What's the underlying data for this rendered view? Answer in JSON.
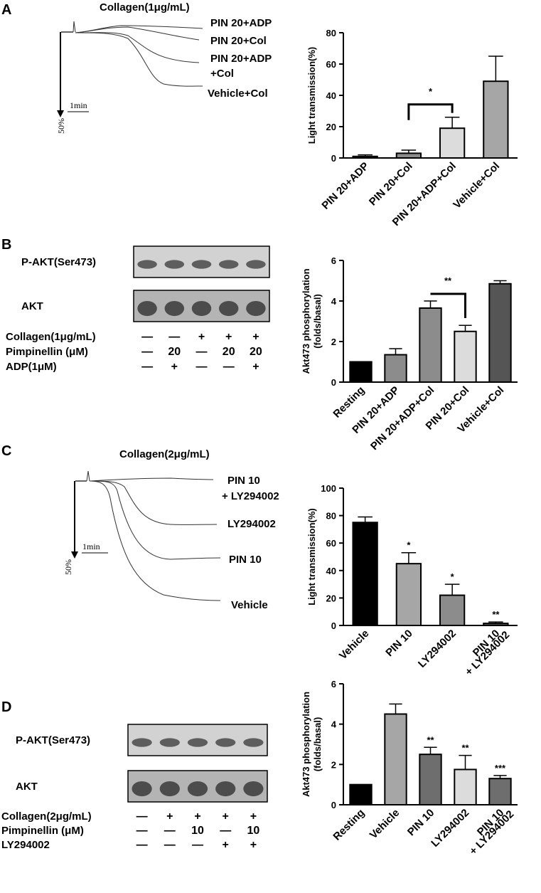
{
  "panels": {
    "A": {
      "letter": "A",
      "trace": {
        "title": "Collagen(1μg/mL)",
        "labels": [
          "PIN 20+ADP",
          "PIN 20+Col",
          "PIN 20+ADP",
          "+Col",
          "Vehicle+Col"
        ],
        "time_scale": "1min",
        "y_scale": "50%"
      },
      "chart": {
        "ylabel": "Light transmission(%)",
        "sig": "*"
      }
    },
    "B": {
      "letter": "B",
      "blot": {
        "rows": [
          "P-AKT(Ser473)",
          "AKT"
        ],
        "conditions": [
          {
            "label": "Collagen(1μg/mL)",
            "values": [
              "—",
              "—",
              "+",
              "+",
              "+"
            ]
          },
          {
            "label": "Pimpinellin (μM)",
            "values": [
              "—",
              "20",
              "—",
              "20",
              "20"
            ]
          },
          {
            "label": "ADP(1μM)",
            "values": [
              "—",
              "+",
              "—",
              "—",
              "+"
            ]
          }
        ]
      },
      "chart": {
        "ylabel": "Akt473 phosphorylation (folds/basal)",
        "ylabel_lines": [
          "Akt473 phosphorylation",
          "(folds/basal)"
        ],
        "sig": "**"
      }
    },
    "C": {
      "letter": "C",
      "trace": {
        "title": "Collagen(2μg/mL)",
        "labels": [
          "PIN 10",
          "+ LY294002",
          "LY294002",
          "PIN 10",
          "Vehicle"
        ],
        "time_scale": "1min",
        "y_scale": "50%"
      },
      "chart": {
        "ylabel": "Light transmission(%)"
      }
    },
    "D": {
      "letter": "D",
      "blot": {
        "rows": [
          "P-AKT(Ser473)",
          "AKT"
        ],
        "conditions": [
          {
            "label": "Collagen(2μg/mL)",
            "values": [
              "—",
              "+",
              "+",
              "+",
              "+"
            ]
          },
          {
            "label": "Pimpinellin (μM)",
            "values": [
              "—",
              "—",
              "10",
              "—",
              "10"
            ]
          },
          {
            "label": "LY294002",
            "values": [
              "—",
              "—",
              "—",
              "+",
              "+"
            ]
          }
        ]
      },
      "chart": {
        "ylabel": "Akt473 phosphorylation (folds/basal)",
        "ylabel_lines": [
          "Akt473 phosphorylation",
          "(folds/basal)"
        ]
      }
    }
  },
  "colors": {
    "black": "#000000",
    "gray_dark": "#555555",
    "gray_mid": "#8c8c8c",
    "gray_light": "#bdbdbd",
    "gray_pale": "#dcdcdc",
    "gray_med": "#a6a6a6",
    "gray_darker": "#6e6e6e"
  },
  "chart_data": [
    {
      "panel": "A",
      "type": "bar",
      "categories": [
        "PIN 20+ADP",
        "PIN 20+Col",
        "PIN 20+ADP+Col",
        "Vehicle+Col"
      ],
      "values": [
        1,
        3,
        19,
        49
      ],
      "errors": [
        1,
        2,
        7,
        16
      ],
      "colors": [
        "#555555",
        "#8c8c8c",
        "#dcdcdc",
        "#a6a6a6"
      ],
      "ylabel": "Light transmission(%)",
      "ylim": [
        0,
        80
      ],
      "yticks": [
        0,
        20,
        40,
        60,
        80
      ],
      "annotations": [
        {
          "text": "*",
          "between": [
            1,
            2
          ]
        }
      ]
    },
    {
      "panel": "B",
      "type": "bar",
      "categories": [
        "Resting",
        "PIN 20+ADP",
        "PIN 20+ADP+Col",
        "PIN 20+Col",
        "Vehicle+Col"
      ],
      "values": [
        1.0,
        1.35,
        3.65,
        2.5,
        4.85
      ],
      "errors": [
        0,
        0.3,
        0.35,
        0.3,
        0.15
      ],
      "colors": [
        "#000000",
        "#8c8c8c",
        "#8c8c8c",
        "#dcdcdc",
        "#555555"
      ],
      "ylabel": "Akt473 phosphorylation (folds/basal)",
      "ylim": [
        0,
        6
      ],
      "yticks": [
        0,
        2,
        4,
        6
      ],
      "annotations": [
        {
          "text": "**",
          "between": [
            2,
            3
          ]
        }
      ]
    },
    {
      "panel": "C",
      "type": "bar",
      "categories": [
        "Vehicle",
        "PIN 10",
        "LY294002",
        "PIN 10 + LY294002"
      ],
      "category_lines": [
        [
          "Vehicle"
        ],
        [
          "PIN 10"
        ],
        [
          "LY294002"
        ],
        [
          "PIN 10",
          "+ LY294002"
        ]
      ],
      "values": [
        75,
        45,
        22,
        1.5
      ],
      "errors": [
        4,
        8,
        8,
        1
      ],
      "colors": [
        "#000000",
        "#a6a6a6",
        "#8c8c8c",
        "#555555"
      ],
      "marks": [
        "",
        "*",
        "*",
        "**"
      ],
      "ylabel": "Light transmission(%)",
      "ylim": [
        0,
        100
      ],
      "yticks": [
        0,
        20,
        40,
        60,
        80,
        100
      ]
    },
    {
      "panel": "D",
      "type": "bar",
      "categories": [
        "Resting",
        "Vehicle",
        "PIN 10",
        "LY294002",
        "PIN 10 + LY294002"
      ],
      "category_lines": [
        [
          "Resting"
        ],
        [
          "Vehicle"
        ],
        [
          "PIN 10"
        ],
        [
          "LY294002"
        ],
        [
          "PIN 10",
          "+ LY294002"
        ]
      ],
      "values": [
        1.0,
        4.5,
        2.5,
        1.75,
        1.3
      ],
      "errors": [
        0,
        0.5,
        0.35,
        0.7,
        0.15
      ],
      "colors": [
        "#000000",
        "#a6a6a6",
        "#6e6e6e",
        "#dcdcdc",
        "#6e6e6e"
      ],
      "marks": [
        "",
        "",
        "**",
        "**",
        "***"
      ],
      "ylabel": "Akt473 phosphorylation (folds/basal)",
      "ylim": [
        0,
        6
      ],
      "yticks": [
        0,
        2,
        4,
        6
      ]
    }
  ]
}
